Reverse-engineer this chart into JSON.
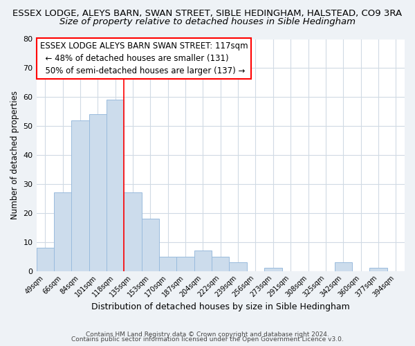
{
  "title_line1": "ESSEX LODGE, ALEYS BARN, SWAN STREET, SIBLE HEDINGHAM, HALSTEAD, CO9 3RA",
  "title_line2": "Size of property relative to detached houses in Sible Hedingham",
  "xlabel": "Distribution of detached houses by size in Sible Hedingham",
  "ylabel": "Number of detached properties",
  "bar_labels": [
    "49sqm",
    "66sqm",
    "84sqm",
    "101sqm",
    "118sqm",
    "135sqm",
    "153sqm",
    "170sqm",
    "187sqm",
    "204sqm",
    "222sqm",
    "239sqm",
    "256sqm",
    "273sqm",
    "291sqm",
    "308sqm",
    "325sqm",
    "342sqm",
    "360sqm",
    "377sqm",
    "394sqm"
  ],
  "bar_values": [
    8,
    27,
    52,
    54,
    59,
    27,
    18,
    5,
    5,
    7,
    5,
    3,
    0,
    1,
    0,
    0,
    0,
    3,
    0,
    1,
    0
  ],
  "bar_color": "#ccdcec",
  "bar_edge_color": "#99bbdd",
  "ylim": [
    0,
    80
  ],
  "yticks": [
    0,
    10,
    20,
    30,
    40,
    50,
    60,
    70,
    80
  ],
  "red_line_index": 4.5,
  "annotation_title": "ESSEX LODGE ALEYS BARN SWAN STREET: 117sqm",
  "annotation_line2": "← 48% of detached houses are smaller (131)",
  "annotation_line3": "50% of semi-detached houses are larger (137) →",
  "footer_line1": "Contains HM Land Registry data © Crown copyright and database right 2024.",
  "footer_line2": "Contains public sector information licensed under the Open Government Licence v3.0.",
  "background_color": "#eef2f6",
  "plot_bg_color": "#ffffff",
  "grid_color": "#d0dae4",
  "title1_fontsize": 9.5,
  "title2_fontsize": 9.5,
  "xlabel_fontsize": 9,
  "ylabel_fontsize": 8.5,
  "annotation_fontsize": 8.5,
  "xtick_fontsize": 7,
  "ytick_fontsize": 8
}
